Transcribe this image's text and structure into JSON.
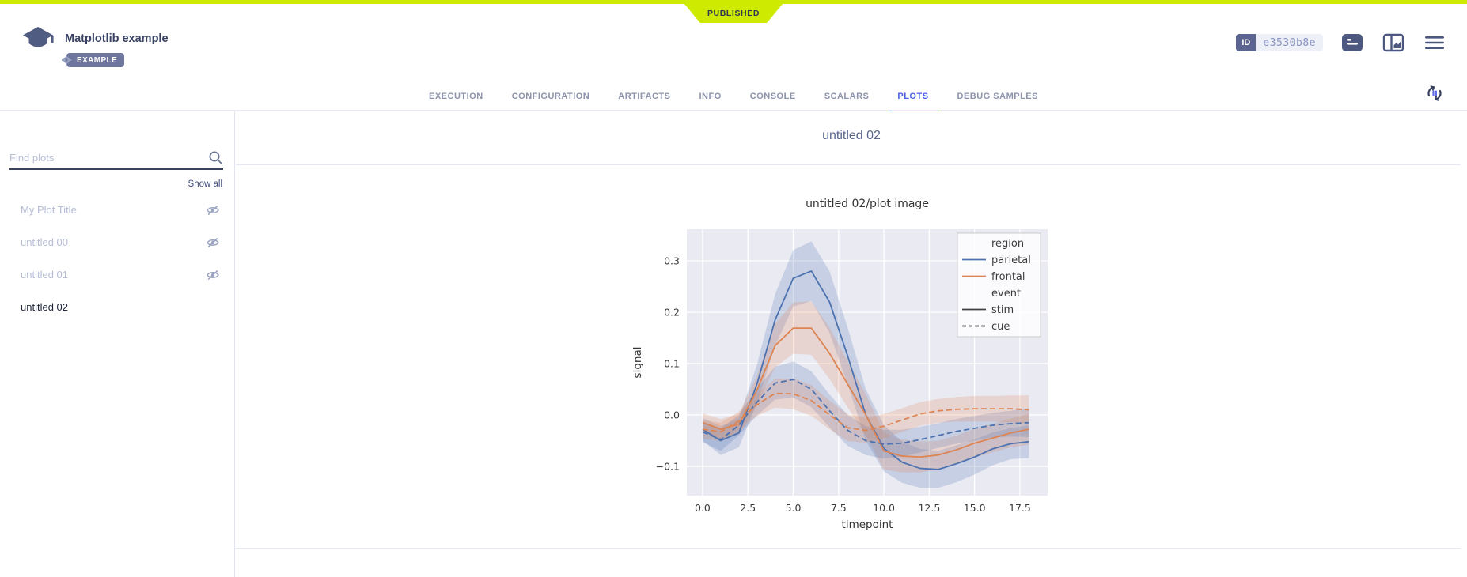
{
  "status_banner": {
    "label": "PUBLISHED",
    "color": "#cdea00"
  },
  "header": {
    "title": "Matplotlib example",
    "type_badge": "EXAMPLE",
    "id_label": "ID",
    "id_value": "e3530b8e"
  },
  "tabs": {
    "items": [
      {
        "label": "EXECUTION"
      },
      {
        "label": "CONFIGURATION"
      },
      {
        "label": "ARTIFACTS"
      },
      {
        "label": "INFO"
      },
      {
        "label": "CONSOLE"
      },
      {
        "label": "SCALARS"
      },
      {
        "label": "PLOTS"
      },
      {
        "label": "DEBUG SAMPLES"
      }
    ],
    "active": "PLOTS"
  },
  "sidebar": {
    "search_placeholder": "Find plots",
    "show_all_label": "Show all",
    "items": [
      {
        "label": "My Plot Title",
        "hidden": true
      },
      {
        "label": "untitled 00",
        "hidden": true
      },
      {
        "label": "untitled 01",
        "hidden": true
      },
      {
        "label": "untitled 02",
        "hidden": false,
        "active": true
      }
    ]
  },
  "content": {
    "group_title": "untitled 02"
  },
  "chart_data": {
    "type": "line",
    "title": "untitled 02/plot image",
    "xlabel": "timepoint",
    "ylabel": "signal",
    "plot_bg": "#eaeaf2",
    "grid": true,
    "x": [
      0,
      1,
      2,
      3,
      4,
      5,
      6,
      7,
      8,
      9,
      10,
      11,
      12,
      13,
      14,
      15,
      16,
      17,
      18
    ],
    "xticks": [
      0.0,
      2.5,
      5.0,
      7.5,
      10.0,
      12.5,
      15.0,
      17.5
    ],
    "yticks": [
      0.3,
      0.2,
      0.1,
      0.0,
      -0.1
    ],
    "xlim": [
      -0.87,
      19.03
    ],
    "ylim": [
      -0.157,
      0.3615
    ],
    "series": [
      {
        "name": "parietal / stim",
        "region": "parietal",
        "event": "stim",
        "color": "#4c72b0",
        "dash": false,
        "values": [
          -0.028,
          -0.05,
          -0.035,
          0.06,
          0.185,
          0.266,
          0.28,
          0.22,
          0.115,
          0.0,
          -0.065,
          -0.092,
          -0.104,
          -0.106,
          -0.095,
          -0.082,
          -0.066,
          -0.056,
          -0.052
        ],
        "band": [
          0.022,
          0.028,
          0.028,
          0.038,
          0.05,
          0.055,
          0.058,
          0.06,
          0.055,
          0.05,
          0.045,
          0.04,
          0.038,
          0.036,
          0.036,
          0.034,
          0.032,
          0.03,
          0.032
        ]
      },
      {
        "name": "frontal / stim",
        "region": "frontal",
        "event": "stim",
        "color": "#dd8452",
        "dash": false,
        "values": [
          -0.015,
          -0.028,
          -0.018,
          0.048,
          0.135,
          0.169,
          0.169,
          0.12,
          0.06,
          0.0,
          -0.07,
          -0.08,
          -0.082,
          -0.078,
          -0.068,
          -0.055,
          -0.045,
          -0.035,
          -0.028
        ],
        "band": [
          0.018,
          0.02,
          0.02,
          0.028,
          0.042,
          0.05,
          0.052,
          0.05,
          0.045,
          0.04,
          0.036,
          0.032,
          0.03,
          0.028,
          0.028,
          0.028,
          0.028,
          0.028,
          0.03
        ]
      },
      {
        "name": "parietal / cue",
        "region": "parietal",
        "event": "cue",
        "color": "#4c72b0",
        "dash": true,
        "values": [
          -0.033,
          -0.048,
          -0.02,
          0.025,
          0.062,
          0.069,
          0.05,
          0.008,
          -0.03,
          -0.05,
          -0.057,
          -0.055,
          -0.048,
          -0.04,
          -0.032,
          -0.026,
          -0.02,
          -0.017,
          -0.015
        ],
        "band": [
          0.02,
          0.022,
          0.02,
          0.026,
          0.032,
          0.035,
          0.035,
          0.032,
          0.03,
          0.028,
          0.028,
          0.026,
          0.025,
          0.024,
          0.024,
          0.024,
          0.024,
          0.025,
          0.028
        ]
      },
      {
        "name": "frontal / cue",
        "region": "frontal",
        "event": "cue",
        "color": "#dd8452",
        "dash": true,
        "values": [
          -0.028,
          -0.033,
          -0.012,
          0.02,
          0.042,
          0.041,
          0.028,
          0.0,
          -0.025,
          -0.03,
          -0.022,
          -0.01,
          0.002,
          0.008,
          0.011,
          0.012,
          0.012,
          0.012,
          0.01
        ],
        "band": [
          0.018,
          0.018,
          0.018,
          0.022,
          0.028,
          0.03,
          0.03,
          0.028,
          0.026,
          0.024,
          0.024,
          0.023,
          0.023,
          0.023,
          0.024,
          0.025,
          0.025,
          0.026,
          0.028
        ]
      }
    ],
    "legend": {
      "position": "upper right",
      "entries": [
        {
          "label": "region",
          "type": "header"
        },
        {
          "label": "parietal",
          "type": "line",
          "color": "#4c72b0",
          "dash": false
        },
        {
          "label": "frontal",
          "type": "line",
          "color": "#dd8452",
          "dash": false
        },
        {
          "label": "event",
          "type": "header"
        },
        {
          "label": "stim",
          "type": "line",
          "color": "#404040",
          "dash": false
        },
        {
          "label": "cue",
          "type": "line",
          "color": "#404040",
          "dash": true
        }
      ]
    }
  }
}
